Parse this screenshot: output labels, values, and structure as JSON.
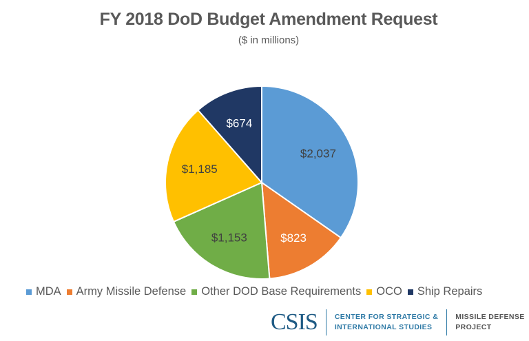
{
  "chart_data": {
    "type": "pie",
    "title": "FY 2018 DoD Budget Amendment Request",
    "subtitle": "($ in millions)",
    "categories": [
      "MDA",
      "Army Missile Defense",
      "Other DOD Base Requirements",
      "OCO",
      "Ship Repairs"
    ],
    "values": [
      2037,
      823,
      1153,
      1185,
      674
    ],
    "data_labels": [
      "$2,037",
      "$823",
      "$1,153",
      "$1,185",
      "$674"
    ],
    "colors": [
      "#5B9BD5",
      "#ED7D31",
      "#70AD47",
      "#FFC000",
      "#203864"
    ],
    "label_colors": [
      "#404040",
      "#ffffff",
      "#404040",
      "#404040",
      "#ffffff"
    ],
    "start_angle": "12 o'clock",
    "direction": "clockwise",
    "legend_position": "bottom"
  },
  "logo": {
    "name": "CSIS",
    "org_line1": "CENTER FOR STRATEGIC &",
    "org_line2": "INTERNATIONAL STUDIES",
    "project_line1": "MISSILE DEFENSE",
    "project_line2": "PROJECT"
  }
}
